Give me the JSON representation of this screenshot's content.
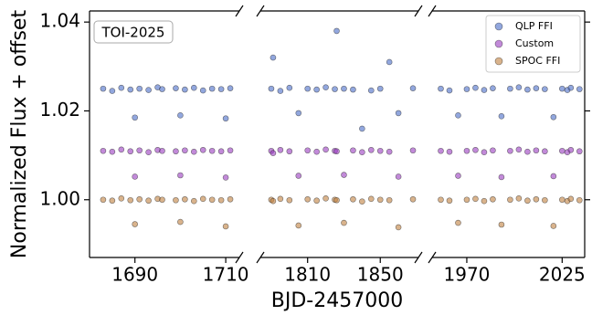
{
  "chart_data": [
    {
      "type": "scatter",
      "ylabel": "Normalized Flux + offset",
      "annotation": "TOI-2025",
      "xlim": [
        1680,
        1713
      ],
      "xticks": [
        1690,
        1710
      ],
      "ylim": [
        0.987,
        1.0425
      ],
      "yticks": [
        {
          "value": 1.0,
          "label": "1.00"
        },
        {
          "value": 1.02,
          "label": "1.02"
        },
        {
          "value": 1.04,
          "label": "1.04"
        }
      ],
      "x": [
        1683,
        1685,
        1687,
        1689,
        1690,
        1691,
        1693,
        1695,
        1696,
        1699,
        1700,
        1701,
        1703,
        1705,
        1707,
        1709,
        1710,
        1711
      ],
      "series": [
        {
          "name": "QLP FFI",
          "color": "#4a6cc8",
          "values": [
            1.025,
            1.0245,
            1.0252,
            1.0248,
            1.0185,
            1.025,
            1.0247,
            1.0253,
            1.0249,
            1.0251,
            1.019,
            1.0248,
            1.0252,
            1.0246,
            1.025,
            1.0249,
            1.0183,
            1.0251
          ]
        },
        {
          "name": "Custom",
          "color": "#9a3cc0",
          "values": [
            1.011,
            1.0108,
            1.0113,
            1.0109,
            1.0052,
            1.0111,
            1.0107,
            1.0112,
            1.011,
            1.0109,
            1.0055,
            1.0111,
            1.0108,
            1.0112,
            1.011,
            1.0109,
            1.005,
            1.0111
          ]
        },
        {
          "name": "SPOC FFI",
          "color": "#c08040",
          "values": [
            1.0,
            0.9998,
            1.0003,
            0.9999,
            0.9945,
            1.0001,
            0.9998,
            1.0002,
            1.0,
            0.9999,
            0.995,
            1.0001,
            0.9997,
            1.0002,
            1.0,
            0.9999,
            0.994,
            1.0001
          ]
        }
      ]
    },
    {
      "type": "scatter",
      "xlabel": "BJD-2457000",
      "xlim": [
        1784,
        1871
      ],
      "xticks": [
        1810,
        1850
      ],
      "x": [
        1790,
        1791,
        1795,
        1800,
        1805,
        1810,
        1815,
        1820,
        1825,
        1826,
        1830,
        1835,
        1840,
        1845,
        1850,
        1855,
        1860,
        1868
      ],
      "series": [
        {
          "name": "QLP FFI",
          "color": "#4a6cc8",
          "values": [
            1.025,
            1.032,
            1.0245,
            1.0252,
            1.0195,
            1.025,
            1.0248,
            1.0253,
            1.0249,
            1.038,
            1.025,
            1.0248,
            1.016,
            1.0246,
            1.025,
            1.031,
            1.0195,
            1.0251
          ]
        },
        {
          "name": "Custom",
          "color": "#9a3cc0",
          "values": [
            1.011,
            1.0105,
            1.0112,
            1.0109,
            1.0054,
            1.0111,
            1.0108,
            1.0113,
            1.011,
            1.0109,
            1.0056,
            1.0111,
            1.0107,
            1.0112,
            1.011,
            1.0108,
            1.0052,
            1.0111
          ]
        },
        {
          "name": "SPOC FFI",
          "color": "#c08040",
          "values": [
            1.0,
            0.9997,
            1.0002,
            0.9999,
            0.9942,
            1.0001,
            0.9998,
            1.0003,
            1.0,
            0.9999,
            0.9948,
            1.0001,
            0.9996,
            1.0002,
            1.0,
            0.9999,
            0.9938,
            1.0001
          ]
        }
      ]
    },
    {
      "type": "scatter",
      "legend": "upper right",
      "xlim": [
        1950,
        2038
      ],
      "xticks": [
        1970,
        2025
      ],
      "x": [
        1955,
        1960,
        1965,
        1970,
        1975,
        1980,
        1985,
        1990,
        1995,
        2000,
        2005,
        2010,
        2015,
        2020,
        2025,
        2028,
        2030,
        2035
      ],
      "series": [
        {
          "name": "QLP FFI",
          "color": "#4a6cc8",
          "values": [
            1.025,
            1.0246,
            1.019,
            1.0249,
            1.0252,
            1.0247,
            1.0251,
            1.0188,
            1.025,
            1.0253,
            1.0248,
            1.0251,
            1.0249,
            1.0186,
            1.025,
            1.0247,
            1.0252,
            1.0249
          ]
        },
        {
          "name": "Custom",
          "color": "#9a3cc0",
          "values": [
            1.011,
            1.0108,
            1.0054,
            1.011,
            1.0112,
            1.0107,
            1.0111,
            1.0051,
            1.011,
            1.0113,
            1.0108,
            1.0111,
            1.0109,
            1.0053,
            1.011,
            1.0107,
            1.0112,
            1.0109
          ]
        },
        {
          "name": "SPOC FFI",
          "color": "#c08040",
          "values": [
            1.0,
            0.9998,
            0.9948,
            1.0,
            1.0002,
            0.9997,
            1.0001,
            0.9944,
            1.0,
            1.0003,
            0.9998,
            1.0001,
            0.9999,
            0.9941,
            1.0,
            0.9997,
            1.0002,
            0.9999
          ]
        }
      ]
    }
  ]
}
